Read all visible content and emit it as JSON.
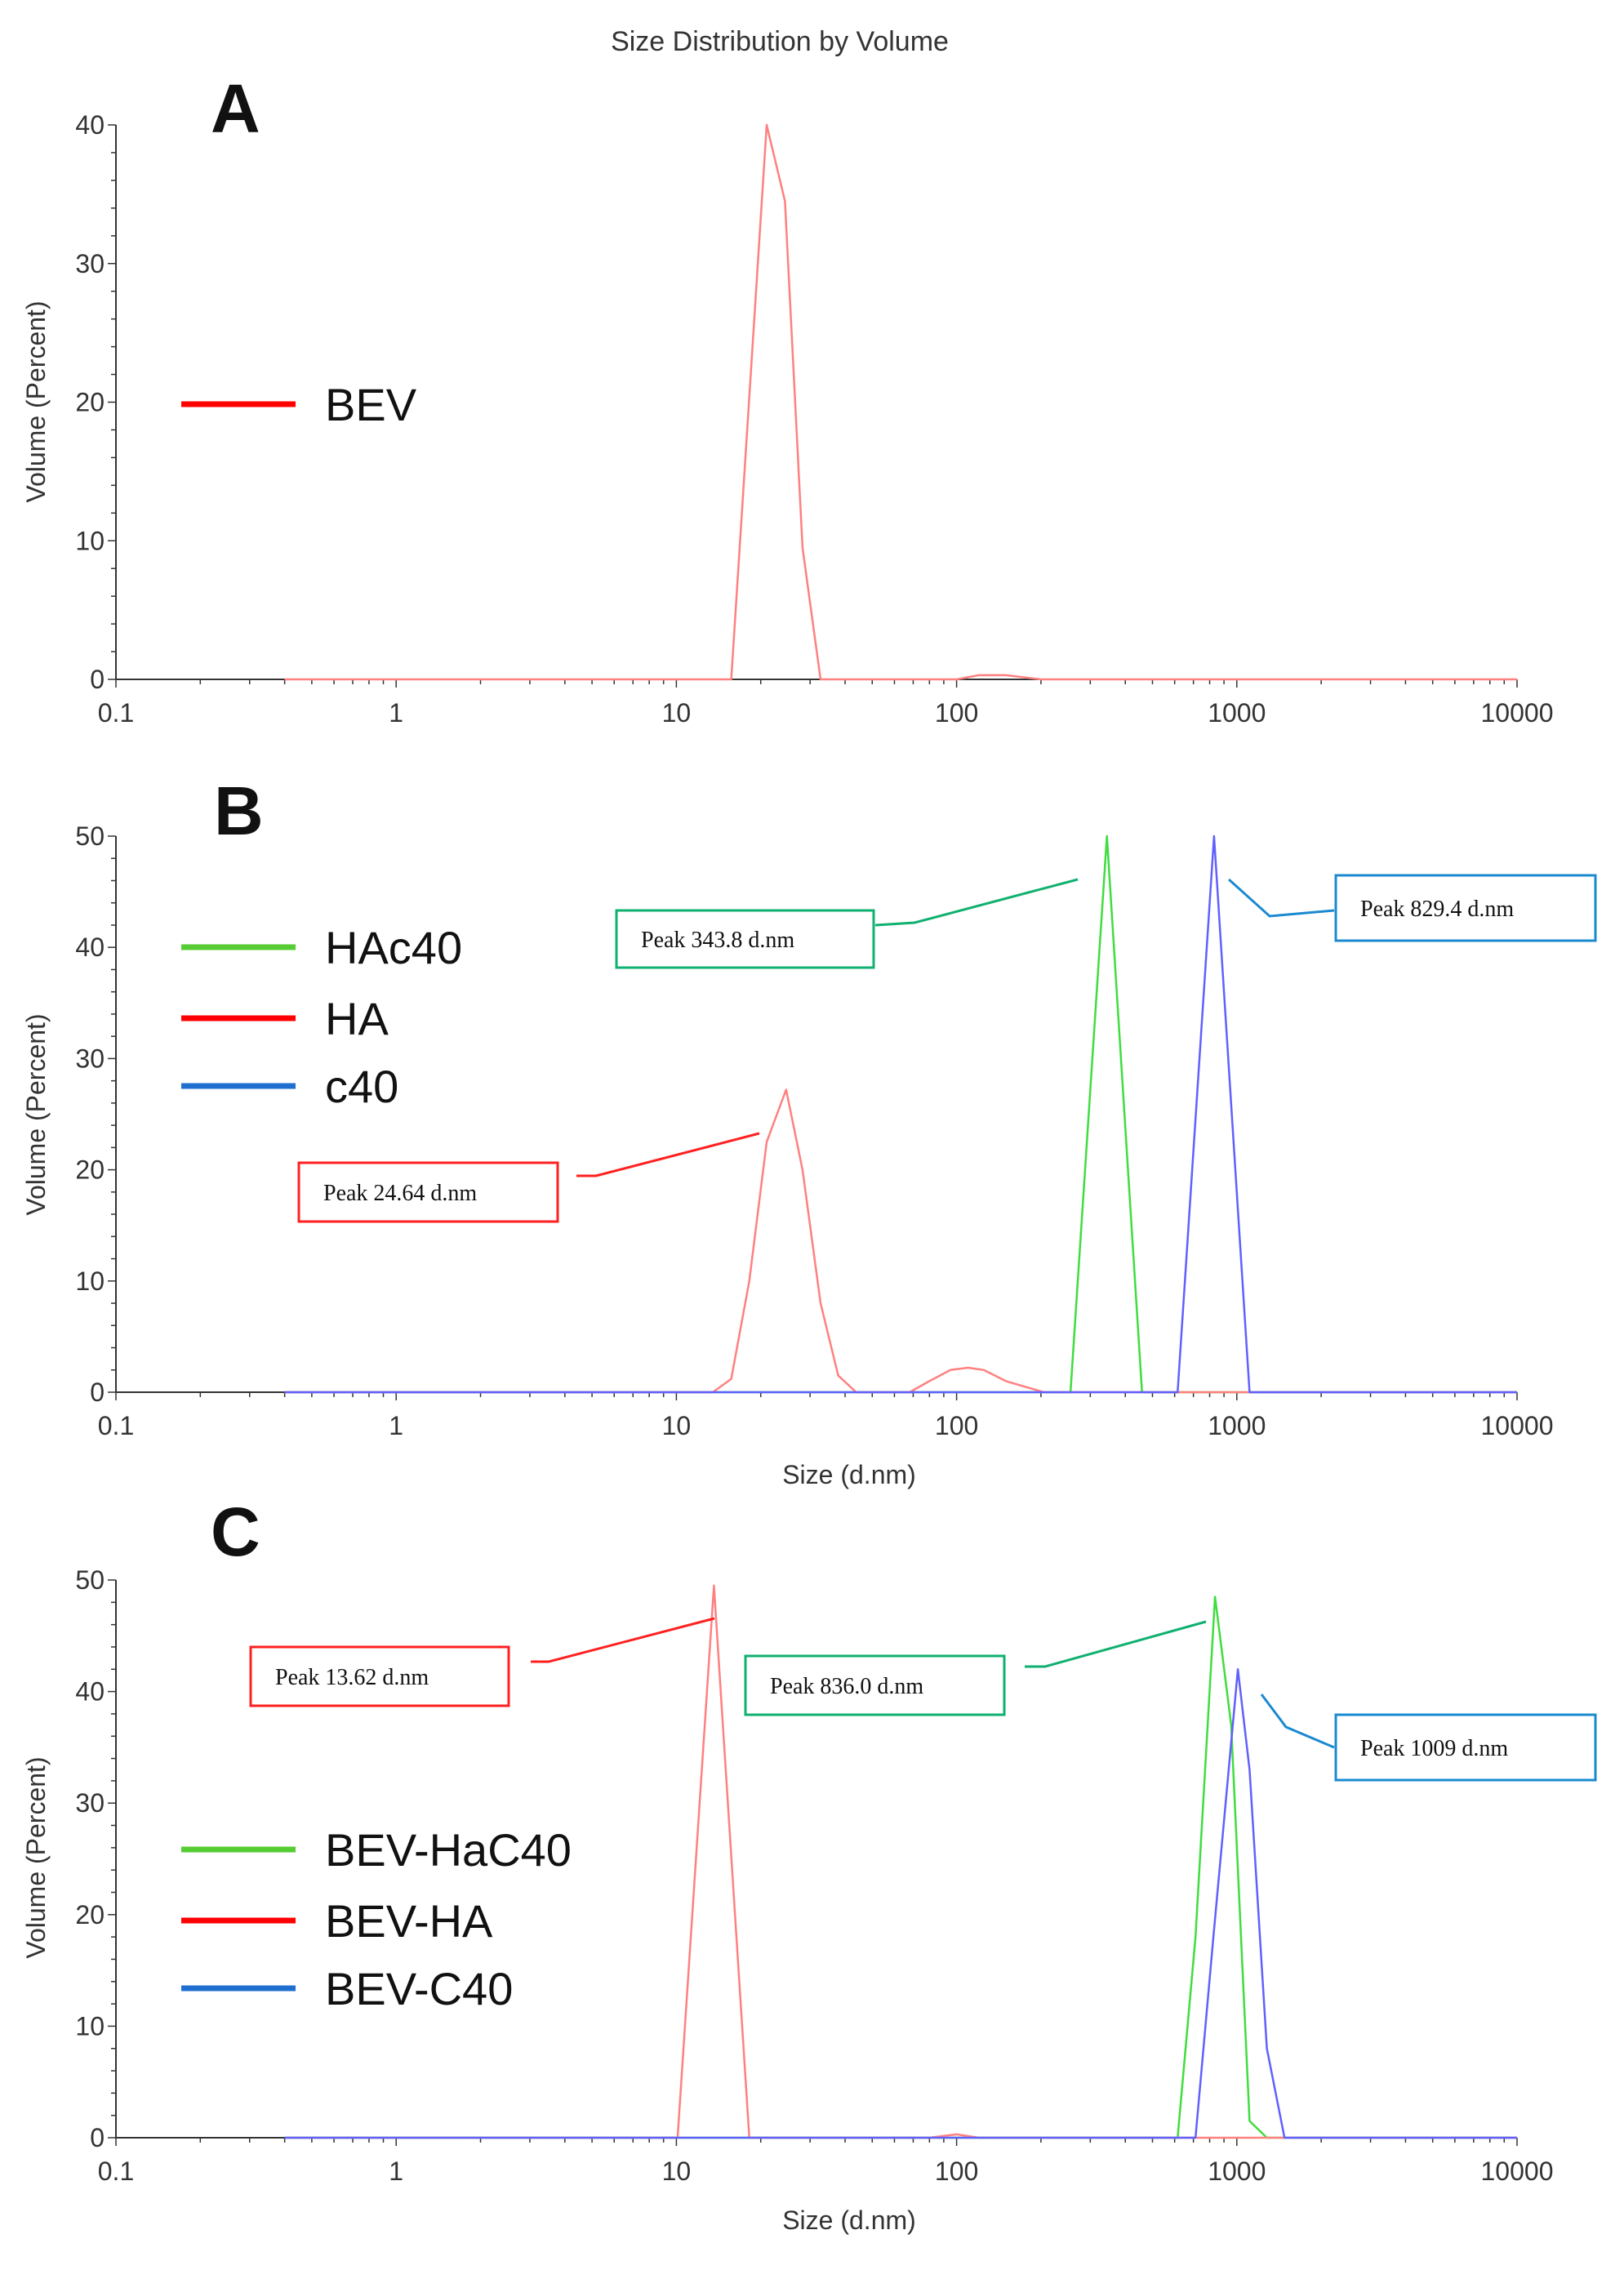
{
  "figure_title": "Size Distribution by Volume",
  "chart_data": [
    {
      "type": "line",
      "panel": "A",
      "xscale": "log",
      "xlim": [
        0.1,
        10000
      ],
      "ylim": [
        0,
        40
      ],
      "xticks": [
        0.1,
        1,
        10,
        100,
        1000,
        10000
      ],
      "xtick_labels": [
        "0.1",
        "1",
        "10",
        "100",
        "1000",
        "10000"
      ],
      "yticks": [
        0,
        10,
        20,
        30,
        40
      ],
      "ytick_labels": [
        "0",
        "10",
        "20",
        "30",
        "40"
      ],
      "xlabel": "",
      "ylabel": "Volume (Percent)",
      "legend": [
        {
          "name": "BEV",
          "color": "#ff0000"
        }
      ],
      "series": [
        {
          "name": "BEV",
          "color": "#ff8080",
          "x": [
            0.4,
            15.7,
            21.0,
            24.4,
            28.2,
            32.7,
            37.8,
            100,
            120,
            150,
            200,
            10000
          ],
          "y": [
            0,
            0,
            40,
            34.5,
            9.5,
            0,
            0,
            0,
            0.3,
            0.3,
            0,
            0
          ]
        }
      ],
      "annotations": []
    },
    {
      "type": "line",
      "panel": "B",
      "xscale": "log",
      "xlim": [
        0.1,
        10000
      ],
      "ylim": [
        0,
        50
      ],
      "xticks": [
        0.1,
        1,
        10,
        100,
        1000,
        10000
      ],
      "xtick_labels": [
        "0.1",
        "1",
        "10",
        "100",
        "1000",
        "10000"
      ],
      "yticks": [
        0,
        10,
        20,
        30,
        40,
        50
      ],
      "ytick_labels": [
        "0",
        "10",
        "20",
        "30",
        "40",
        "50"
      ],
      "xlabel": "Size (d.nm)",
      "ylabel": "Volume (Percent)",
      "legend": [
        {
          "name": "HAc40",
          "color": "#55cc33"
        },
        {
          "name": "HA",
          "color": "#ff0000"
        },
        {
          "name": "c40",
          "color": "#1f6fd0"
        }
      ],
      "series": [
        {
          "name": "HAc40",
          "color": "#3fdd3f",
          "x": [
            0.4,
            255,
            343.8,
            459,
            10000
          ],
          "y": [
            0,
            0,
            50,
            0,
            0
          ]
        },
        {
          "name": "HA",
          "color": "#ff8080",
          "x": [
            0.4,
            13.5,
            15.7,
            18.2,
            21.0,
            24.64,
            28.2,
            32.7,
            37.8,
            43.8,
            68,
            80,
            95,
            110,
            125,
            150,
            205,
            10000
          ],
          "y": [
            0,
            0,
            1.2,
            10,
            22.5,
            27.2,
            20,
            8,
            1.5,
            0,
            0,
            1,
            2,
            2.2,
            2,
            1,
            0,
            0
          ]
        },
        {
          "name": "c40",
          "color": "#6060ff",
          "x": [
            0.4,
            615,
            829.4,
            1110,
            10000
          ],
          "y": [
            0,
            0,
            50,
            0,
            0
          ]
        }
      ],
      "annotations": [
        {
          "text": "Peak  343.8 d.nm",
          "color": "#10b070",
          "x": 343.8,
          "y": 50
        },
        {
          "text": "Peak  829.4 d.nm",
          "color": "#1a8ad0",
          "x": 829.4,
          "y": 50
        },
        {
          "text": "Peak  24.64 d.nm",
          "color": "#ff2020",
          "x": 24.64,
          "y": 27.2
        }
      ]
    },
    {
      "type": "line",
      "panel": "C",
      "xscale": "log",
      "xlim": [
        0.1,
        10000
      ],
      "ylim": [
        0,
        50
      ],
      "xticks": [
        0.1,
        1,
        10,
        100,
        1000,
        10000
      ],
      "xtick_labels": [
        "0.1",
        "1",
        "10",
        "100",
        "1000",
        "10000"
      ],
      "yticks": [
        0,
        10,
        20,
        30,
        40,
        50
      ],
      "ytick_labels": [
        "0",
        "10",
        "20",
        "30",
        "40",
        "50"
      ],
      "xlabel": "Size (d.nm)",
      "ylabel": "Volume (Percent)",
      "legend": [
        {
          "name": "BEV-HaC40",
          "color": "#55cc33"
        },
        {
          "name": "BEV-HA",
          "color": "#ff0000"
        },
        {
          "name": "BEV-C40",
          "color": "#1f6fd0"
        }
      ],
      "series": [
        {
          "name": "BEV-HaC40",
          "color": "#3fdd3f",
          "x": [
            0.4,
            615,
            712,
            836.0,
            955,
            1110,
            1280,
            10000
          ],
          "y": [
            0,
            0,
            18,
            48.5,
            37,
            1.5,
            0,
            0
          ]
        },
        {
          "name": "BEV-HA",
          "color": "#ff8080",
          "x": [
            0.4,
            10.1,
            13.62,
            18.2,
            80,
            100,
            120,
            10000
          ],
          "y": [
            0,
            0,
            49.5,
            0,
            0,
            0.3,
            0,
            0
          ]
        },
        {
          "name": "BEV-C40",
          "color": "#6060ff",
          "x": [
            0.4,
            712,
            825,
            1009,
            1110,
            1280,
            1480,
            10000
          ],
          "y": [
            0,
            0,
            18,
            42,
            33,
            8,
            0,
            0
          ]
        }
      ],
      "annotations": [
        {
          "text": "Peak  13.62 d.nm",
          "color": "#ff2020",
          "x": 13.62,
          "y": 49.5
        },
        {
          "text": "Peak  836.0 d.nm",
          "color": "#10b070",
          "x": 836.0,
          "y": 48.5
        },
        {
          "text": "Peak  1009 d.nm",
          "color": "#1a8ad0",
          "x": 1009,
          "y": 42
        }
      ]
    }
  ]
}
